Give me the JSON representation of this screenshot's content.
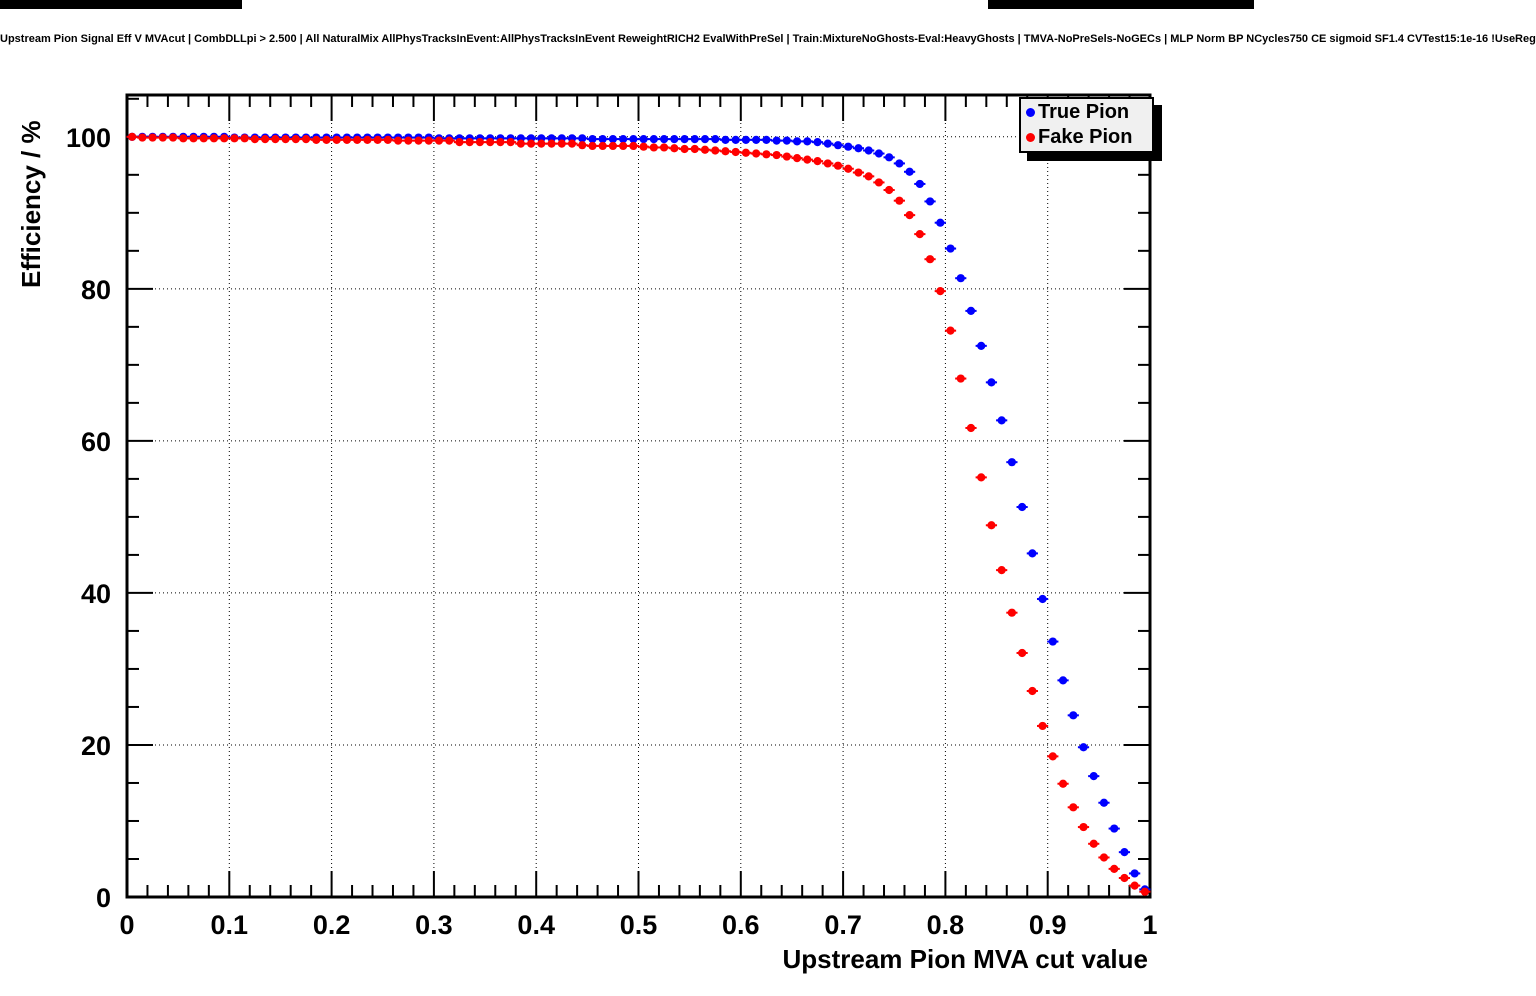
{
  "title": "Upstream Pion Signal Eff V MVAcut | CombDLLpi > 2.500 | All NaturalMix AllPhysTracksInEvent:AllPhysTracksInEvent ReweightRICH2 EvalWithPreSel | Train:MixtureNoGhosts-Eval:HeavyGhosts | TMVA-NoPreSels-NoGECs | MLP Norm BP NCycles750 CE sigmoid SF1.4 CVTest15:1e-16 !UseReg",
  "banner": {
    "color": "#000000"
  },
  "legend": {
    "entries": [
      {
        "label": "True Pion",
        "color": "#0000ff"
      },
      {
        "label": "Fake Pion",
        "color": "#ff0000"
      }
    ]
  },
  "chart_data": {
    "type": "scatter",
    "title": "Upstream Pion Signal Eff V MVAcut | CombDLLpi > 2.500 | All NaturalMix AllPhysTracksInEvent:AllPhysTracksInEvent ReweightRICH2 EvalWithPreSel | Train:MixtureNoGhosts-Eval:HeavyGhosts | TMVA-NoPreSels-NoGECs | MLP Norm BP NCycles750 CE sigmoid SF1.4 CVTest15:1e-16 !UseReg",
    "xlabel": "Upstream Pion MVA cut value",
    "ylabel": "Efficiency / %",
    "xlim": [
      0,
      1
    ],
    "ylim": [
      0,
      105.5
    ],
    "grid": "dotted",
    "legend_position": "top-right",
    "x_tick_values": [
      0,
      0.1,
      0.2,
      0.3,
      0.4,
      0.5,
      0.6,
      0.7,
      0.8,
      0.9,
      1
    ],
    "x_tick_labels": [
      "0",
      "0.1",
      "0.2",
      "0.3",
      "0.4",
      "0.5",
      "0.6",
      "0.7",
      "0.8",
      "0.9",
      "1"
    ],
    "y_tick_values": [
      0,
      20,
      40,
      60,
      80,
      100
    ],
    "y_tick_labels": [
      "0",
      "20",
      "40",
      "60",
      "80",
      "100"
    ],
    "x_minor_step": 0.02,
    "y_minor_step": 5,
    "x": [
      0.005,
      0.015,
      0.025,
      0.035,
      0.045,
      0.055,
      0.065,
      0.075,
      0.085,
      0.095,
      0.105,
      0.115,
      0.125,
      0.135,
      0.145,
      0.155,
      0.165,
      0.175,
      0.185,
      0.195,
      0.205,
      0.215,
      0.225,
      0.235,
      0.245,
      0.255,
      0.265,
      0.275,
      0.285,
      0.295,
      0.305,
      0.315,
      0.325,
      0.335,
      0.345,
      0.355,
      0.365,
      0.375,
      0.385,
      0.395,
      0.405,
      0.415,
      0.425,
      0.435,
      0.445,
      0.455,
      0.465,
      0.475,
      0.485,
      0.495,
      0.505,
      0.515,
      0.525,
      0.535,
      0.545,
      0.555,
      0.565,
      0.575,
      0.585,
      0.595,
      0.605,
      0.615,
      0.625,
      0.635,
      0.645,
      0.655,
      0.665,
      0.675,
      0.685,
      0.695,
      0.705,
      0.715,
      0.725,
      0.735,
      0.745,
      0.755,
      0.765,
      0.775,
      0.785,
      0.795,
      0.805,
      0.815,
      0.825,
      0.835,
      0.845,
      0.855,
      0.865,
      0.875,
      0.885,
      0.895,
      0.905,
      0.915,
      0.925,
      0.935,
      0.945,
      0.955,
      0.965,
      0.975,
      0.985,
      0.995
    ],
    "series": [
      {
        "name": "True Pion",
        "color": "#0000ff",
        "values": [
          100,
          100,
          100,
          100,
          100,
          100,
          100,
          100,
          100,
          100,
          99.9,
          99.9,
          99.9,
          99.9,
          99.9,
          99.9,
          99.9,
          99.9,
          99.9,
          99.9,
          99.9,
          99.9,
          99.9,
          99.9,
          99.9,
          99.9,
          99.9,
          99.9,
          99.9,
          99.9,
          99.8,
          99.8,
          99.8,
          99.8,
          99.8,
          99.8,
          99.8,
          99.8,
          99.8,
          99.8,
          99.8,
          99.8,
          99.8,
          99.8,
          99.8,
          99.7,
          99.7,
          99.7,
          99.7,
          99.7,
          99.7,
          99.7,
          99.7,
          99.7,
          99.7,
          99.7,
          99.7,
          99.7,
          99.6,
          99.6,
          99.6,
          99.6,
          99.6,
          99.5,
          99.5,
          99.4,
          99.4,
          99.3,
          99.1,
          98.9,
          98.7,
          98.5,
          98.2,
          97.8,
          97.3,
          96.5,
          95.4,
          93.8,
          91.5,
          88.7,
          85.3,
          81.4,
          77.1,
          72.5,
          67.7,
          62.7,
          57.2,
          51.3,
          45.2,
          39.2,
          33.6,
          28.5,
          23.9,
          19.7,
          15.9,
          12.4,
          9.0,
          5.9,
          3.1,
          1.0
        ]
      },
      {
        "name": "Fake Pion",
        "color": "#ff0000",
        "values": [
          100,
          99.9,
          99.9,
          99.9,
          99.9,
          99.8,
          99.8,
          99.8,
          99.8,
          99.8,
          99.8,
          99.8,
          99.7,
          99.7,
          99.7,
          99.7,
          99.7,
          99.7,
          99.6,
          99.6,
          99.6,
          99.6,
          99.6,
          99.6,
          99.6,
          99.6,
          99.5,
          99.5,
          99.5,
          99.5,
          99.5,
          99.5,
          99.3,
          99.3,
          99.3,
          99.3,
          99.3,
          99.3,
          99.1,
          99.1,
          99.1,
          99.1,
          99.1,
          99.1,
          98.9,
          98.8,
          98.8,
          98.8,
          98.8,
          98.8,
          98.7,
          98.6,
          98.6,
          98.5,
          98.4,
          98.4,
          98.3,
          98.2,
          98.1,
          98.0,
          97.9,
          97.8,
          97.7,
          97.6,
          97.4,
          97.2,
          97.0,
          96.8,
          96.5,
          96.2,
          95.8,
          95.3,
          94.8,
          94.0,
          93.0,
          91.6,
          89.7,
          87.2,
          83.9,
          79.7,
          74.5,
          68.2,
          61.7,
          55.2,
          48.9,
          43.0,
          37.4,
          32.1,
          27.1,
          22.5,
          18.5,
          14.9,
          11.8,
          9.2,
          7.0,
          5.2,
          3.7,
          2.5,
          1.5,
          0.7
        ]
      }
    ]
  }
}
